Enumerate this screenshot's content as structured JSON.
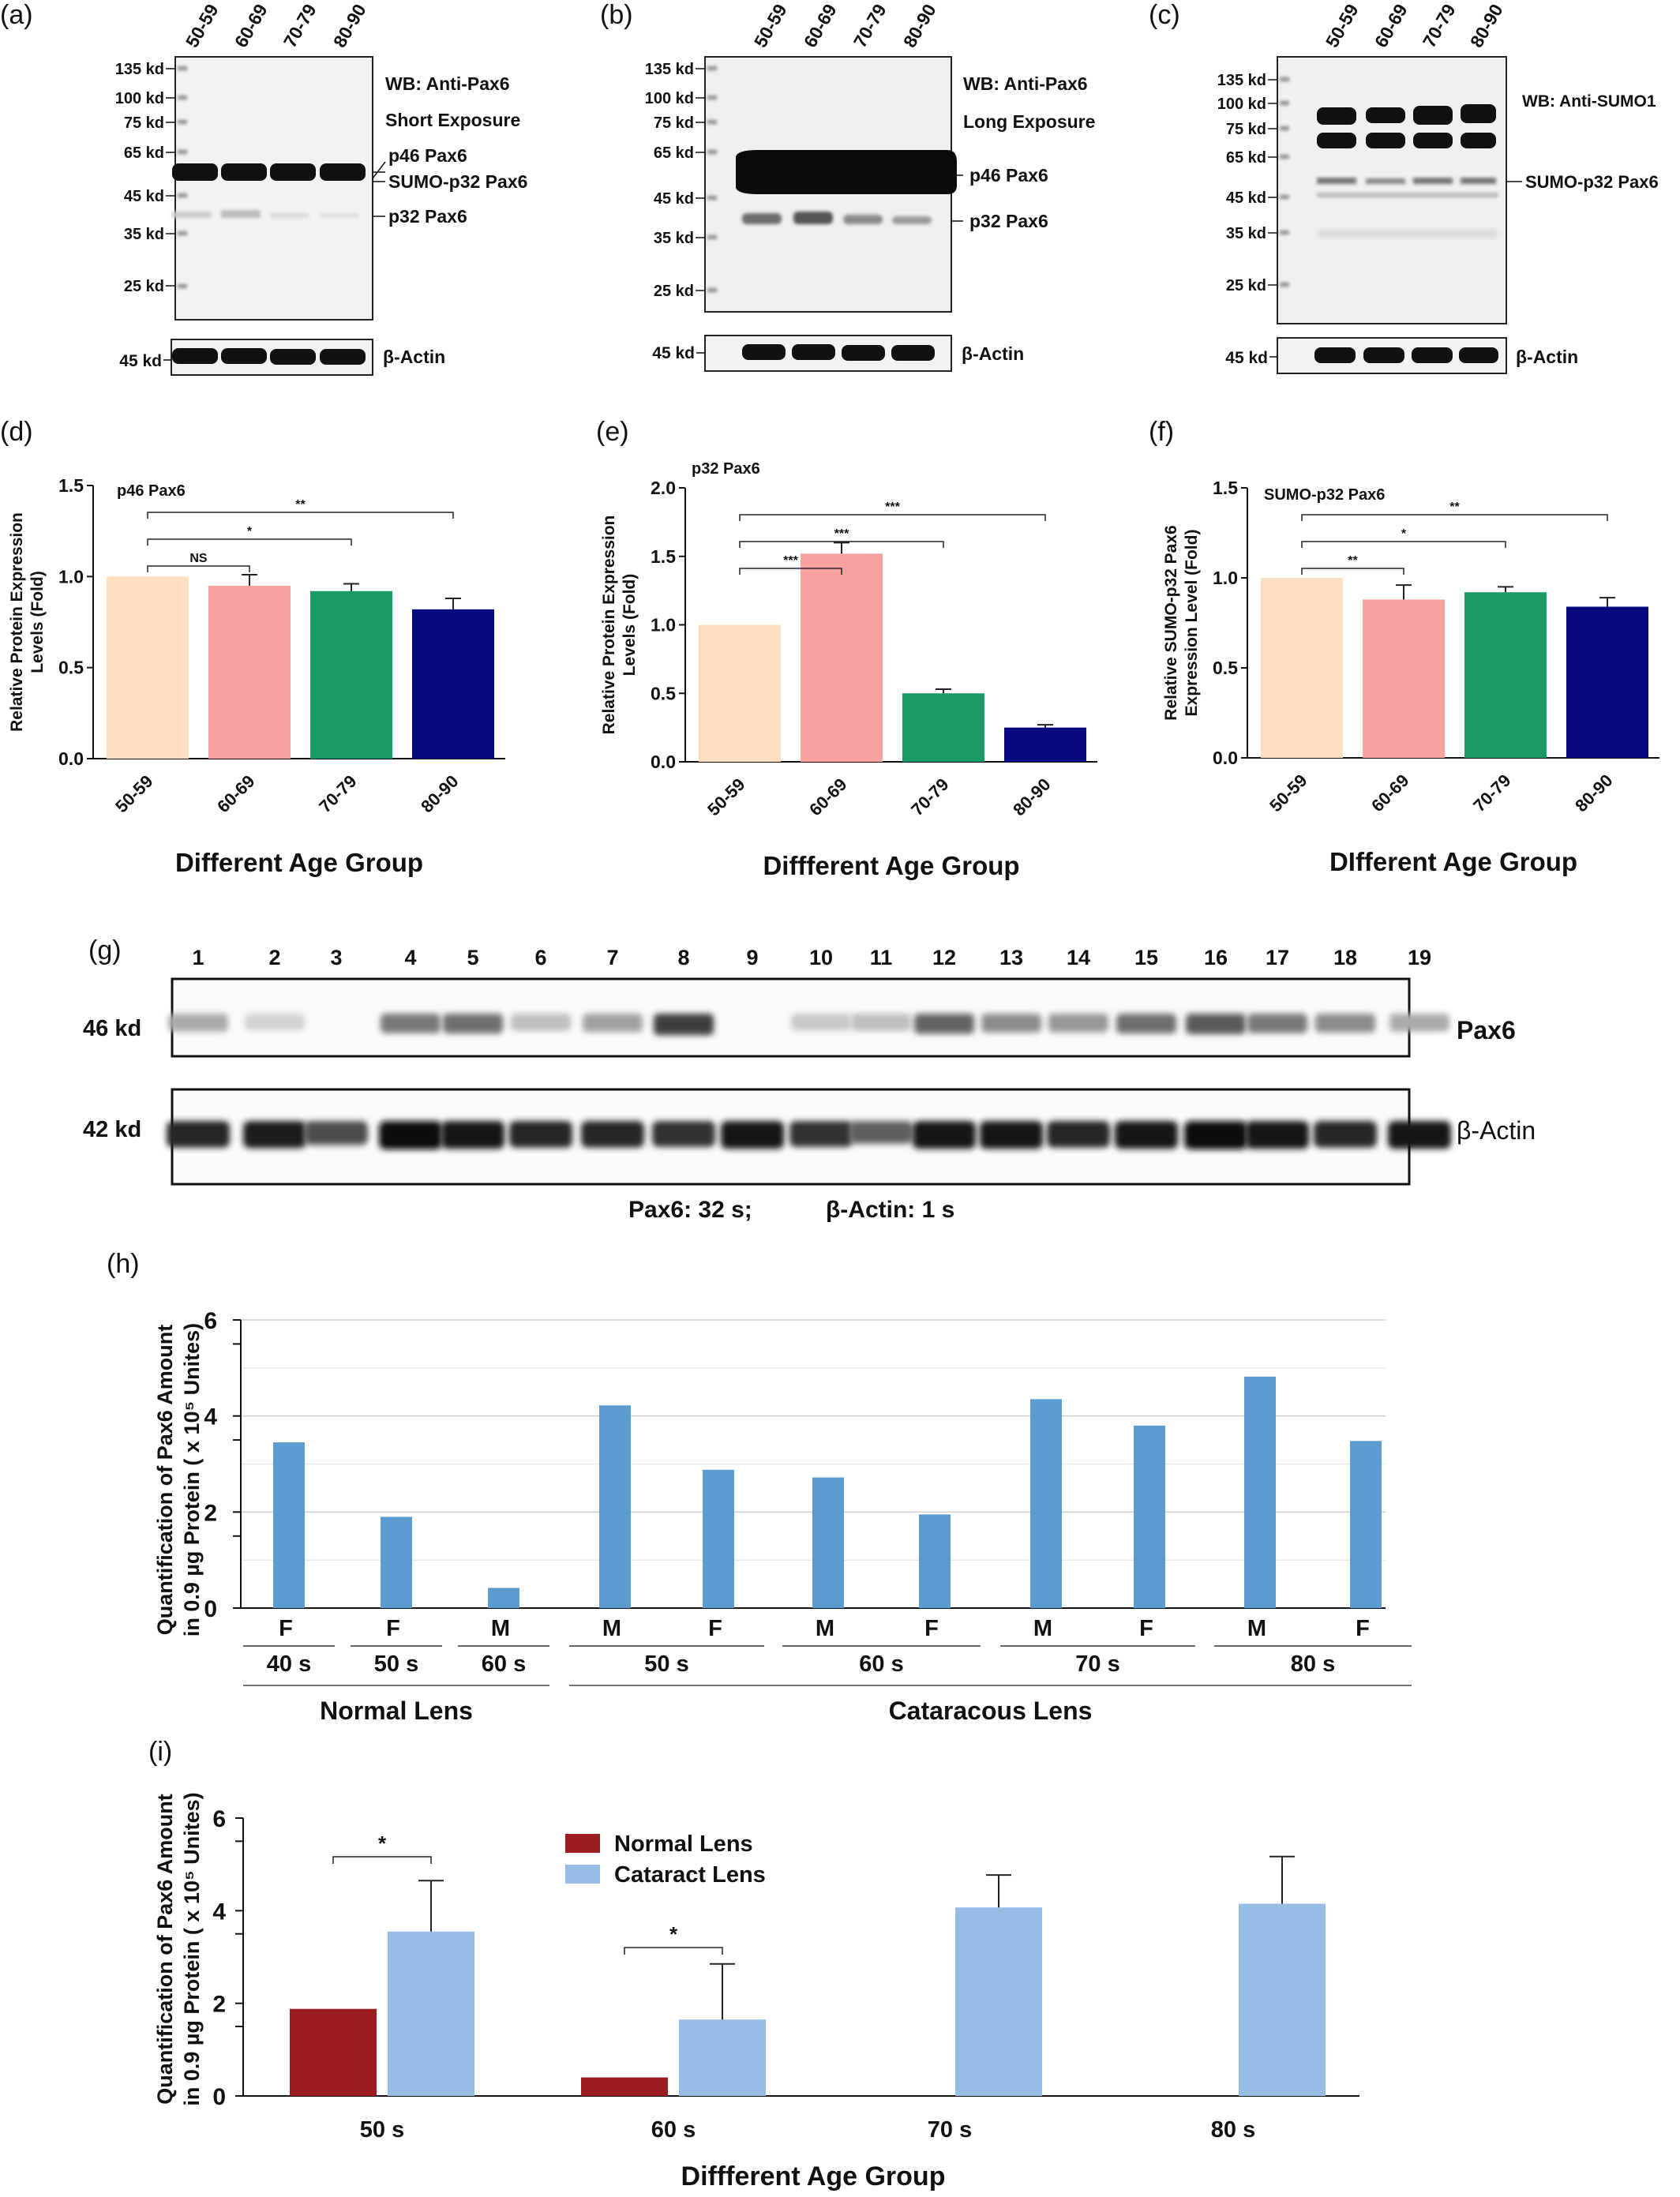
{
  "panels": {
    "a": {
      "label": "(a)",
      "lanes": [
        "50-59",
        "60-69",
        "70-79",
        "80-90"
      ],
      "markers": [
        "135 kd",
        "100 kd",
        "75 kd",
        "65 kd",
        "45 kd",
        "35 kd",
        "25 kd"
      ],
      "title_line1": "WB: Anti-Pax6",
      "title_line2": "Short Exposure",
      "band_labels": [
        "p46 Pax6",
        "SUMO-p32 Pax6",
        "p32 Pax6"
      ],
      "loading_marker": "45 kd",
      "loading_label": "β-Actin"
    },
    "b": {
      "label": "(b)",
      "lanes": [
        "50-59",
        "60-69",
        "70-79",
        "80-90"
      ],
      "markers": [
        "135 kd",
        "100 kd",
        "75 kd",
        "65 kd",
        "45 kd",
        "35 kd",
        "25 kd"
      ],
      "title_line1": "WB: Anti-Pax6",
      "title_line2": "Long Exposure",
      "band_labels": [
        "p46  Pax6",
        "p32  Pax6"
      ],
      "loading_marker": "45 kd",
      "loading_label": "β-Actin"
    },
    "c": {
      "label": "(c)",
      "lanes": [
        "50-59",
        "60-69",
        "70-79",
        "80-90"
      ],
      "markers": [
        "135 kd",
        "100 kd",
        "75 kd",
        "65 kd",
        "45 kd",
        "35 kd",
        "25 kd"
      ],
      "title_line1": "WB:  Anti-SUMO1",
      "band_labels": [
        "SUMO-p32 Pax6"
      ],
      "loading_marker": "45 kd",
      "loading_label": "β-Actin"
    },
    "g": {
      "label": "(g)",
      "lanes": [
        "1",
        "2",
        "3",
        "4",
        "5",
        "6",
        "7",
        "8",
        "9",
        "10",
        "11",
        "12",
        "13",
        "14",
        "15",
        "16",
        "17",
        "18",
        "19"
      ],
      "pax6_marker": "46 kd",
      "actin_marker": "42 kd",
      "pax6_label": "Pax6",
      "actin_label": "β-Actin",
      "exposure_pax6": "Pax6:  32 s;",
      "exposure_actin": "β-Actin:  1 s",
      "pax6_intensity": [
        0.35,
        0.15,
        0.0,
        0.6,
        0.65,
        0.25,
        0.4,
        0.9,
        0.0,
        0.2,
        0.25,
        0.7,
        0.5,
        0.45,
        0.65,
        0.75,
        0.6,
        0.5,
        0.35
      ],
      "actin_intensity": [
        0.85,
        0.9,
        0.65,
        1.0,
        0.95,
        0.85,
        0.85,
        0.8,
        0.95,
        0.8,
        0.55,
        0.95,
        0.95,
        0.85,
        0.95,
        1.0,
        0.95,
        0.85,
        0.95
      ]
    }
  },
  "colors": {
    "age_50_59": "#fde0c2",
    "age_60_69": "#f8a3a0",
    "age_70_79": "#179a63",
    "age_80_90": "#08097e",
    "bar_h": "#5b9bd0",
    "normal_lens": "#9b1d20",
    "cataract_lens": "#97bde6"
  },
  "chart_data": [
    {
      "panel": "(d)",
      "type": "bar",
      "title": "p46 Pax6",
      "categories": [
        "50-59",
        "60-69",
        "70-79",
        "80-90"
      ],
      "values": [
        1.0,
        0.95,
        0.92,
        0.82
      ],
      "errors": [
        0.0,
        0.06,
        0.04,
        0.06
      ],
      "ylabel_line1": "Relative Protein Expression",
      "ylabel_line2": "Levels (Fold)",
      "xlabel": "Different Age Group",
      "ylim": [
        0,
        1.5
      ],
      "yticks": [
        "0.0",
        "0.5",
        "1.0",
        "1.5"
      ],
      "significance": [
        {
          "from": 0,
          "to": 1,
          "label": "NS"
        },
        {
          "from": 0,
          "to": 2,
          "label": "*"
        },
        {
          "from": 0,
          "to": 3,
          "label": "**"
        }
      ]
    },
    {
      "panel": "(e)",
      "type": "bar",
      "title": "p32 Pax6",
      "categories": [
        "50-59",
        "60-69",
        "70-79",
        "80-90"
      ],
      "values": [
        1.0,
        1.52,
        0.5,
        0.25
      ],
      "errors": [
        0.0,
        0.08,
        0.03,
        0.02
      ],
      "ylabel_line1": "Relative Protein Expression",
      "ylabel_line2": "Levels (Fold)",
      "xlabel": "Diffferent Age Group",
      "ylim": [
        0,
        2.0
      ],
      "yticks": [
        "0.0",
        "0.5",
        "1.0",
        "1.5",
        "2.0"
      ],
      "significance": [
        {
          "from": 0,
          "to": 1,
          "label": "***"
        },
        {
          "from": 0,
          "to": 2,
          "label": "***"
        },
        {
          "from": 0,
          "to": 3,
          "label": "***"
        }
      ]
    },
    {
      "panel": "(f)",
      "type": "bar",
      "title": "SUMO-p32 Pax6",
      "categories": [
        "50-59",
        "60-69",
        "70-79",
        "80-90"
      ],
      "values": [
        1.0,
        0.88,
        0.92,
        0.84
      ],
      "errors": [
        0.0,
        0.08,
        0.03,
        0.05
      ],
      "ylabel_line1": "Relative SUMO-p32 Pax6",
      "ylabel_line2": "Expression Level (Fold)",
      "xlabel": "DIfferent Age Group",
      "ylim": [
        0,
        1.5
      ],
      "yticks": [
        "0.0",
        "0.5",
        "1.0",
        "1.5"
      ],
      "significance": [
        {
          "from": 0,
          "to": 1,
          "label": "**"
        },
        {
          "from": 0,
          "to": 2,
          "label": "*"
        },
        {
          "from": 0,
          "to": 3,
          "label": "**"
        }
      ]
    },
    {
      "panel": "(h)",
      "type": "bar",
      "categories": [
        "F",
        "F",
        "M",
        "M",
        "F",
        "M",
        "F",
        "M",
        "F",
        "M",
        "F"
      ],
      "values": [
        3.45,
        1.9,
        0.42,
        4.22,
        2.88,
        2.72,
        1.95,
        4.35,
        3.8,
        4.82,
        3.48
      ],
      "age_groups": [
        {
          "label": "40 s",
          "count": 1
        },
        {
          "label": "50 s",
          "count": 1
        },
        {
          "label": "60 s",
          "count": 1
        },
        {
          "label": "50 s",
          "count": 2
        },
        {
          "label": "60 s",
          "count": 2
        },
        {
          "label": "70 s",
          "count": 2
        },
        {
          "label": "80 s",
          "count": 2
        }
      ],
      "lens_groups": [
        {
          "label": "Normal Lens",
          "count": 3
        },
        {
          "label": "Cataracous Lens",
          "count": 8
        }
      ],
      "ylabel_line1": "Quantification of Pax6 Amount",
      "ylabel_line2": "in 0.9  µg Protein ( x 10⁵ Unites)",
      "ylim": [
        0,
        6
      ],
      "yticks": [
        "0",
        "2",
        "4",
        "6"
      ],
      "grid": true
    },
    {
      "panel": "(i)",
      "type": "bar",
      "categories": [
        "50 s",
        "60 s",
        "70 s",
        "80 s"
      ],
      "series": [
        {
          "name": "Normal Lens",
          "values": [
            1.88,
            0.4,
            null,
            null
          ],
          "errors": [
            null,
            null,
            null,
            null
          ]
        },
        {
          "name": "Cataract Lens",
          "values": [
            3.55,
            1.65,
            4.07,
            4.15
          ],
          "errors": [
            1.1,
            1.2,
            0.7,
            1.02
          ]
        }
      ],
      "significance": [
        {
          "group": 0,
          "label": "*"
        },
        {
          "group": 1,
          "label": "*"
        }
      ],
      "ylabel_line1": "Quantification of Pax6 Amount",
      "ylabel_line2": "in 0.9  µg Protein ( x 10⁵ Unites)",
      "xlabel": "Diffferent Age Group",
      "ylim": [
        0,
        6
      ],
      "yticks": [
        "0",
        "2",
        "4",
        "6"
      ],
      "legend": "top-center"
    }
  ]
}
